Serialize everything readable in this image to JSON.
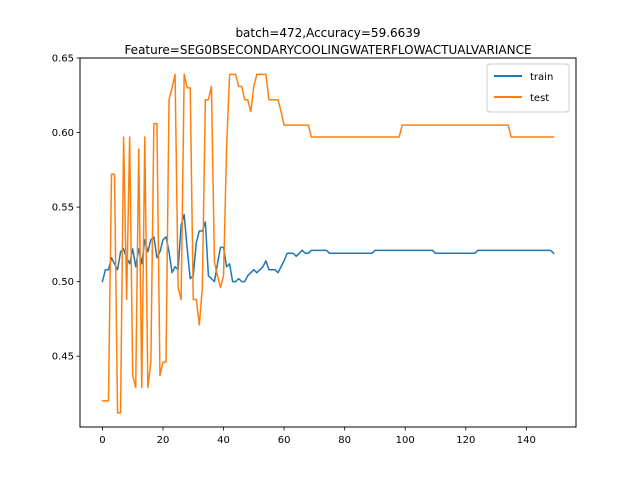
{
  "chart_data": {
    "type": "line",
    "title_line1": "batch=472,Accuracy=59.6639",
    "title_line2": "Feature=SEG0BSECONDARYCOOLINGWATERFLOWACTUALVARIANCE",
    "xlabel": "",
    "ylabel": "",
    "xlim": [
      -7.4,
      156.4
    ],
    "ylim": [
      0.4025,
      0.65
    ],
    "x_ticks": [
      0,
      20,
      40,
      60,
      80,
      100,
      120,
      140
    ],
    "y_ticks": [
      0.45,
      0.5,
      0.55,
      0.6,
      0.65
    ],
    "y_tick_labels": [
      "0.45",
      "0.50",
      "0.55",
      "0.60",
      "0.65"
    ],
    "grid": false,
    "legend_position": "top-right",
    "series": [
      {
        "name": "train",
        "color": "#1f77b4",
        "points": [
          [
            0,
            0.5
          ],
          [
            1,
            0.508
          ],
          [
            2,
            0.508
          ],
          [
            3,
            0.516
          ],
          [
            4,
            0.512
          ],
          [
            5,
            0.508
          ],
          [
            6,
            0.52
          ],
          [
            7,
            0.522
          ],
          [
            8,
            0.516
          ],
          [
            9,
            0.512
          ],
          [
            10,
            0.522
          ],
          [
            11,
            0.51
          ],
          [
            12,
            0.522
          ],
          [
            13,
            0.512
          ],
          [
            14,
            0.528
          ],
          [
            15,
            0.52
          ],
          [
            16,
            0.528
          ],
          [
            17,
            0.53
          ],
          [
            18,
            0.516
          ],
          [
            19,
            0.52
          ],
          [
            20,
            0.528
          ],
          [
            21,
            0.53
          ],
          [
            22,
            0.52
          ],
          [
            23,
            0.506
          ],
          [
            24,
            0.51
          ],
          [
            25,
            0.508
          ],
          [
            26,
            0.538
          ],
          [
            27,
            0.545
          ],
          [
            28,
            0.522
          ],
          [
            29,
            0.502
          ],
          [
            30,
            0.504
          ],
          [
            31,
            0.526
          ],
          [
            32,
            0.534
          ],
          [
            33,
            0.534
          ],
          [
            34,
            0.54
          ],
          [
            35,
            0.504
          ],
          [
            36,
            0.502
          ],
          [
            37,
            0.5
          ],
          [
            38,
            0.512
          ],
          [
            39,
            0.523
          ],
          [
            40,
            0.523
          ],
          [
            41,
            0.51
          ],
          [
            42,
            0.512
          ],
          [
            43,
            0.5
          ],
          [
            44,
            0.5
          ],
          [
            45,
            0.502
          ],
          [
            46,
            0.5
          ],
          [
            47,
            0.5
          ],
          [
            48,
            0.504
          ],
          [
            49,
            0.506
          ],
          [
            50,
            0.508
          ],
          [
            51,
            0.506
          ],
          [
            52,
            0.508
          ],
          [
            53,
            0.51
          ],
          [
            54,
            0.514
          ],
          [
            55,
            0.508
          ],
          [
            56,
            0.508
          ],
          [
            57,
            0.508
          ],
          [
            58,
            0.506
          ],
          [
            59,
            0.51
          ],
          [
            60,
            0.514
          ],
          [
            61,
            0.519
          ],
          [
            62,
            0.519
          ],
          [
            63,
            0.519
          ],
          [
            64,
            0.517
          ],
          [
            65,
            0.519
          ],
          [
            66,
            0.521
          ],
          [
            67,
            0.519
          ],
          [
            68,
            0.519
          ],
          [
            69,
            0.521
          ],
          [
            70,
            0.521
          ],
          [
            74,
            0.521
          ],
          [
            75,
            0.519
          ],
          [
            89,
            0.519
          ],
          [
            90,
            0.521
          ],
          [
            109,
            0.521
          ],
          [
            110,
            0.519
          ],
          [
            123,
            0.519
          ],
          [
            124,
            0.521
          ],
          [
            148,
            0.521
          ],
          [
            149,
            0.519
          ]
        ]
      },
      {
        "name": "test",
        "color": "#ff7f0e",
        "points": [
          [
            0,
            0.42
          ],
          [
            1,
            0.42
          ],
          [
            2,
            0.42
          ],
          [
            3,
            0.572
          ],
          [
            4,
            0.572
          ],
          [
            5,
            0.412
          ],
          [
            6,
            0.412
          ],
          [
            7,
            0.597
          ],
          [
            8,
            0.488
          ],
          [
            9,
            0.597
          ],
          [
            10,
            0.437
          ],
          [
            11,
            0.429
          ],
          [
            12,
            0.589
          ],
          [
            13,
            0.429
          ],
          [
            14,
            0.597
          ],
          [
            15,
            0.429
          ],
          [
            16,
            0.446
          ],
          [
            17,
            0.606
          ],
          [
            18,
            0.606
          ],
          [
            19,
            0.437
          ],
          [
            20,
            0.446
          ],
          [
            21,
            0.446
          ],
          [
            22,
            0.622
          ],
          [
            23,
            0.63
          ],
          [
            24,
            0.639
          ],
          [
            25,
            0.496
          ],
          [
            26,
            0.488
          ],
          [
            27,
            0.639
          ],
          [
            28,
            0.63
          ],
          [
            29,
            0.63
          ],
          [
            30,
            0.488
          ],
          [
            31,
            0.488
          ],
          [
            32,
            0.471
          ],
          [
            33,
            0.496
          ],
          [
            34,
            0.622
          ],
          [
            35,
            0.622
          ],
          [
            36,
            0.631
          ],
          [
            37,
            0.513
          ],
          [
            38,
            0.504
          ],
          [
            39,
            0.496
          ],
          [
            40,
            0.504
          ],
          [
            41,
            0.589
          ],
          [
            42,
            0.639
          ],
          [
            43,
            0.639
          ],
          [
            44,
            0.639
          ],
          [
            45,
            0.631
          ],
          [
            46,
            0.631
          ],
          [
            47,
            0.622
          ],
          [
            48,
            0.622
          ],
          [
            49,
            0.614
          ],
          [
            50,
            0.631
          ],
          [
            51,
            0.639
          ],
          [
            52,
            0.639
          ],
          [
            53,
            0.639
          ],
          [
            54,
            0.639
          ],
          [
            55,
            0.622
          ],
          [
            56,
            0.622
          ],
          [
            57,
            0.622
          ],
          [
            58,
            0.622
          ],
          [
            59,
            0.614
          ],
          [
            60,
            0.605
          ],
          [
            68,
            0.605
          ],
          [
            69,
            0.597
          ],
          [
            98,
            0.597
          ],
          [
            99,
            0.605
          ],
          [
            134,
            0.605
          ],
          [
            135,
            0.597
          ],
          [
            149,
            0.597
          ]
        ]
      }
    ]
  }
}
